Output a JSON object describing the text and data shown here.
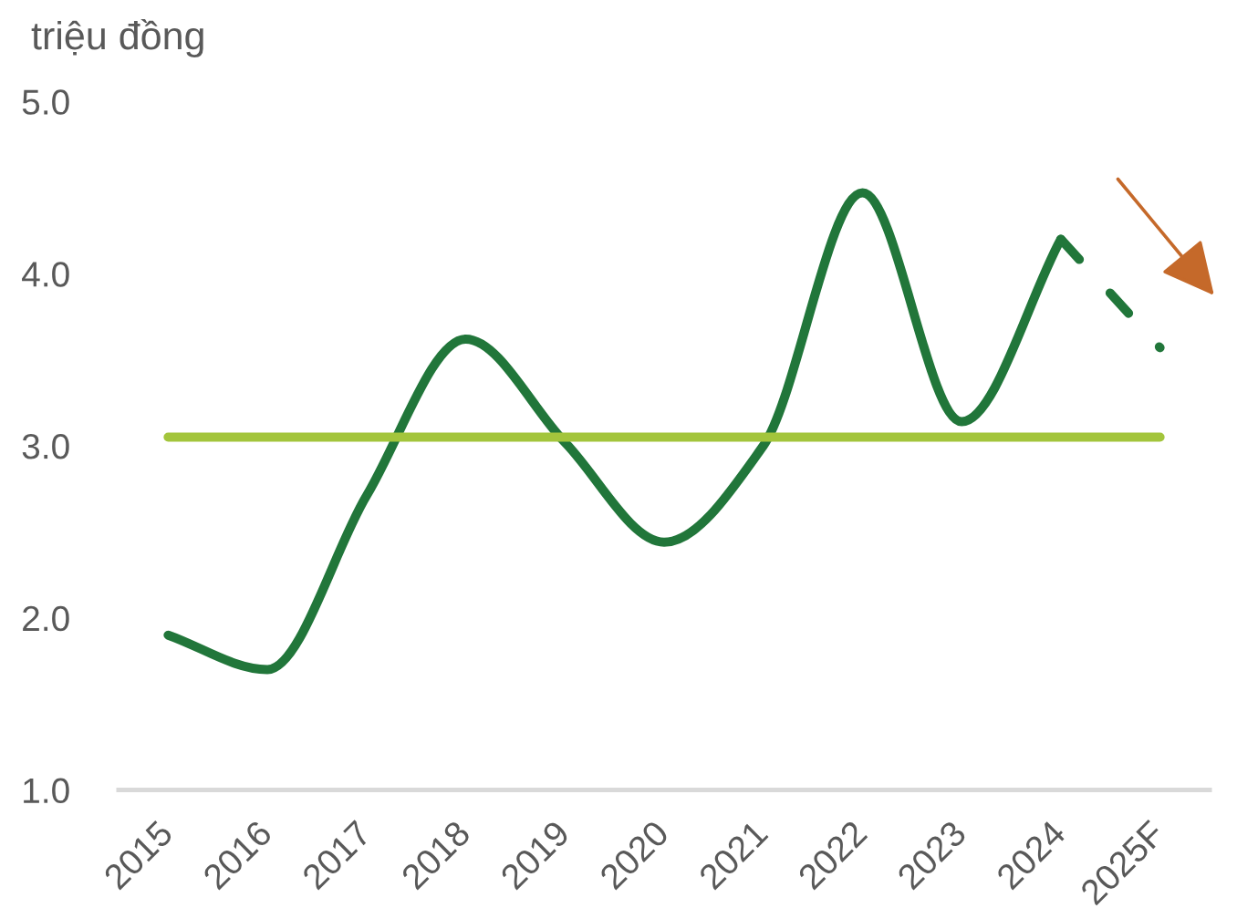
{
  "chart_data": {
    "type": "line",
    "ylabel": "triệu đồng",
    "categories": [
      "2015",
      "2016",
      "2017",
      "2018",
      "2019",
      "2020",
      "2021",
      "2022",
      "2023",
      "2024",
      "2025F"
    ],
    "series": [
      {
        "color": "#21763a",
        "values": [
          1.9,
          1.7,
          2.71,
          3.62,
          3.02,
          2.44,
          3.0,
          4.47,
          3.14,
          4.2,
          null
        ]
      },
      {
        "color": "#21763a",
        "line_style": "dashed",
        "values": [
          null,
          null,
          null,
          null,
          null,
          null,
          null,
          null,
          null,
          4.2,
          3.57
        ]
      }
    ],
    "ref_lines": [
      {
        "axis": "y",
        "value": 3.05,
        "color": "#a3c53c"
      }
    ],
    "ylim": [
      1,
      5
    ],
    "yticks": [
      {
        "value": 1,
        "label": "1.0"
      },
      {
        "value": 2,
        "label": "2.0"
      },
      {
        "value": 3,
        "label": "3.0"
      },
      {
        "value": 4,
        "label": "4.0"
      },
      {
        "value": 5,
        "label": "5.0"
      }
    ]
  }
}
